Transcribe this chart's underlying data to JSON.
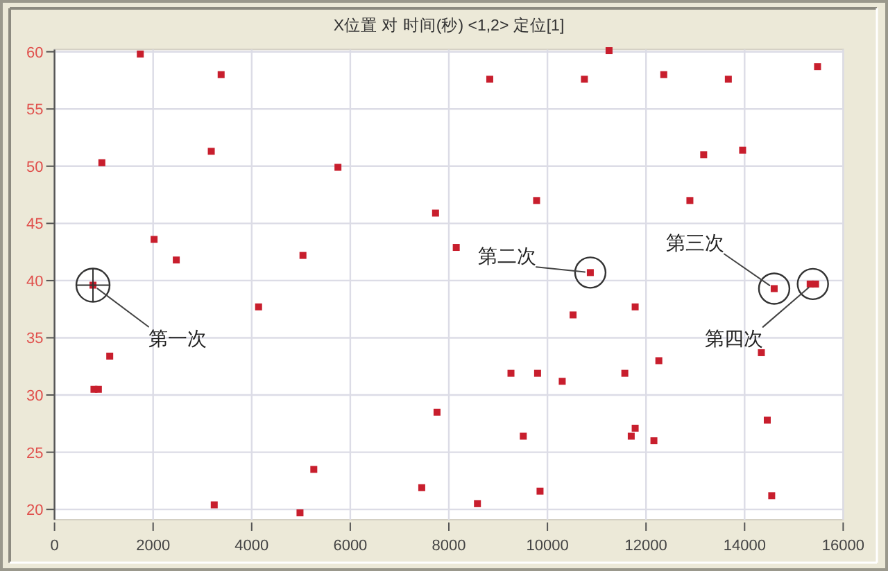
{
  "chart_data": {
    "type": "scatter",
    "title": "X位置 对 时间(秒) <1,2> 定位[1]",
    "series": [
      {
        "color": "#c81e2d",
        "x": [
          1740,
          3380,
          960,
          3180,
          5750,
          2020,
          2470,
          5040,
          7730,
          8150,
          780,
          4140,
          1120,
          800,
          890,
          7760,
          5260,
          3240,
          4980,
          7450,
          11250,
          8830,
          10750,
          12360,
          13670,
          15480,
          13170,
          13960,
          9780,
          12890,
          10870,
          14600,
          15330,
          15440,
          11780,
          10520,
          14340,
          12260,
          9260,
          9800,
          11570,
          10300,
          14460,
          11780,
          11700,
          12160,
          9510,
          9850,
          8580,
          14550
        ],
        "values": [
          59.8,
          58.0,
          50.3,
          51.3,
          49.9,
          43.6,
          41.8,
          42.2,
          45.9,
          42.9,
          39.6,
          37.7,
          33.4,
          30.5,
          30.5,
          28.5,
          23.5,
          20.4,
          19.7,
          21.9,
          60.1,
          57.6,
          57.6,
          58.0,
          57.6,
          58.7,
          51.0,
          51.4,
          47.0,
          47.0,
          40.7,
          39.3,
          39.7,
          39.7,
          37.7,
          37.0,
          33.7,
          33.0,
          31.9,
          31.9,
          31.9,
          31.2,
          27.8,
          27.1,
          26.4,
          26.0,
          26.4,
          21.6,
          20.5,
          21.2
        ]
      }
    ],
    "marker": "square",
    "grid": true,
    "xlim": [
      0,
      16000
    ],
    "xticks": [
      0,
      2000,
      4000,
      6000,
      8000,
      10000,
      12000,
      14000,
      16000
    ],
    "ylim": [
      19.1,
      60.2
    ],
    "yticks": [
      20,
      25,
      30,
      35,
      40,
      45,
      50,
      55,
      60
    ],
    "annotations": [
      {
        "text": "第一次",
        "x": 780,
        "y": 39.6
      },
      {
        "text": "第二次",
        "x": 10870,
        "y": 40.7
      },
      {
        "text": "第三次",
        "x": 14600,
        "y": 39.3
      },
      {
        "text": "第四次",
        "x": 15385,
        "y": 39.7
      }
    ]
  }
}
